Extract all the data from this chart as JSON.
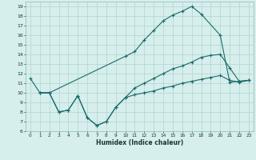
{
  "xlabel": "Humidex (Indice chaleur)",
  "bg_color": "#d6eeec",
  "line_color": "#1a6b6b",
  "grid_color": "#b0d4d0",
  "xlim": [
    -0.5,
    23.5
  ],
  "ylim": [
    6,
    19.5
  ],
  "xtick_labels": [
    "0",
    "1",
    "2",
    "3",
    "4",
    "5",
    "6",
    "7",
    "8",
    "9",
    "10",
    "11",
    "12",
    "13",
    "14",
    "15",
    "16",
    "17",
    "18",
    "19",
    "20",
    "21",
    "22",
    "23"
  ],
  "xtick_pos": [
    0,
    1,
    2,
    3,
    4,
    5,
    6,
    7,
    8,
    9,
    10,
    11,
    12,
    13,
    14,
    15,
    16,
    17,
    18,
    19,
    20,
    21,
    22,
    23
  ],
  "ytick_pos": [
    6,
    7,
    8,
    9,
    10,
    11,
    12,
    13,
    14,
    15,
    16,
    17,
    18,
    19
  ],
  "line1_x": [
    0,
    1,
    2,
    10,
    11,
    12,
    13,
    14,
    15,
    16,
    17,
    18,
    20,
    21,
    22,
    23
  ],
  "line1_y": [
    11.5,
    10.0,
    10.0,
    13.8,
    14.3,
    15.5,
    16.5,
    17.5,
    18.1,
    18.5,
    19.0,
    18.2,
    16.0,
    11.1,
    11.2,
    11.3
  ],
  "line2_x": [
    1,
    2,
    3,
    4,
    5,
    6,
    7,
    8,
    9,
    10,
    11,
    12,
    13,
    14,
    15,
    16,
    17,
    18,
    19,
    20,
    21,
    22,
    23
  ],
  "line2_y": [
    10.0,
    10.0,
    8.0,
    8.2,
    9.7,
    7.4,
    6.6,
    7.0,
    8.5,
    9.5,
    10.5,
    11.0,
    11.5,
    12.0,
    12.5,
    12.8,
    13.2,
    13.7,
    13.9,
    14.0,
    12.6,
    11.2,
    11.3
  ],
  "line3_x": [
    1,
    2,
    3,
    4,
    5,
    6,
    7,
    8,
    9,
    10,
    11,
    12,
    13,
    14,
    15,
    16,
    17,
    18,
    19,
    20,
    21,
    22,
    23
  ],
  "line3_y": [
    10.0,
    10.0,
    8.0,
    8.2,
    9.7,
    7.4,
    6.6,
    7.0,
    8.5,
    9.5,
    9.8,
    10.0,
    10.2,
    10.5,
    10.7,
    11.0,
    11.2,
    11.4,
    11.6,
    11.8,
    11.3,
    11.1,
    11.3
  ]
}
